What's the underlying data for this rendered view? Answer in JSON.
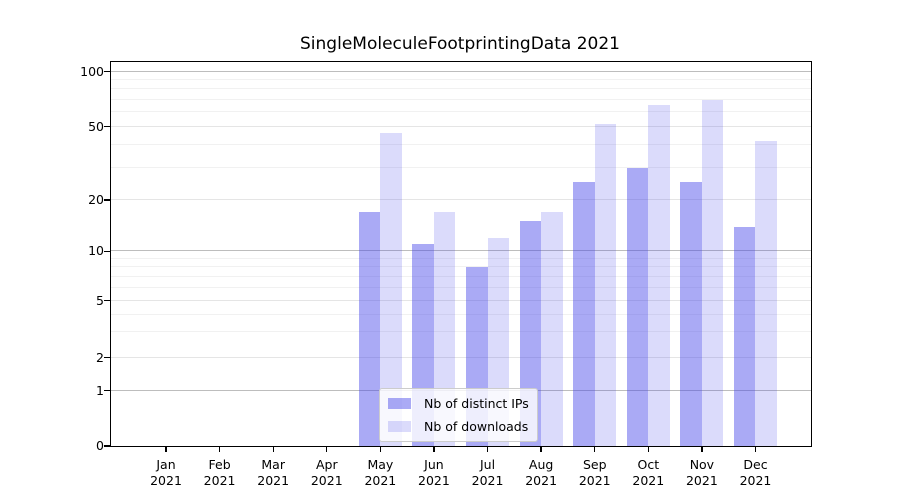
{
  "chart_data": {
    "type": "bar",
    "title": "SingleMoleculeFootprintingData 2021",
    "categories": [
      "Jan\n2021",
      "Feb\n2021",
      "Mar\n2021",
      "Apr\n2021",
      "May\n2021",
      "Jun\n2021",
      "Jul\n2021",
      "Aug\n2021",
      "Sep\n2021",
      "Oct\n2021",
      "Nov\n2021",
      "Dec\n2021"
    ],
    "series": [
      {
        "name": "Nb of distinct IPs",
        "fill": "rgba(66,66,232,0.45)",
        "approx_hex": "#aaaaf4",
        "values": [
          0,
          0,
          0,
          0,
          17,
          11,
          8,
          15,
          25,
          30,
          25,
          14
        ]
      },
      {
        "name": "Nb of downloads",
        "fill": "rgba(66,66,232,0.19)",
        "approx_hex": "#dbdbfa",
        "values": [
          0,
          0,
          0,
          0,
          46,
          17,
          12,
          17,
          52,
          66,
          70,
          42
        ]
      }
    ],
    "xlabel": "",
    "ylabel": "",
    "yticks": [
      0,
      1,
      2,
      5,
      10,
      20,
      50,
      100
    ],
    "ylim": [
      0,
      100
    ],
    "yscale": "log-like",
    "grid": true,
    "legend_position": "lower center",
    "colors": {
      "grid_major": "#bdbdbd",
      "grid_mid": "#e5e5e5",
      "grid_minor": "#f1f1f1",
      "axis": "#000000",
      "background": "#ffffff"
    }
  }
}
